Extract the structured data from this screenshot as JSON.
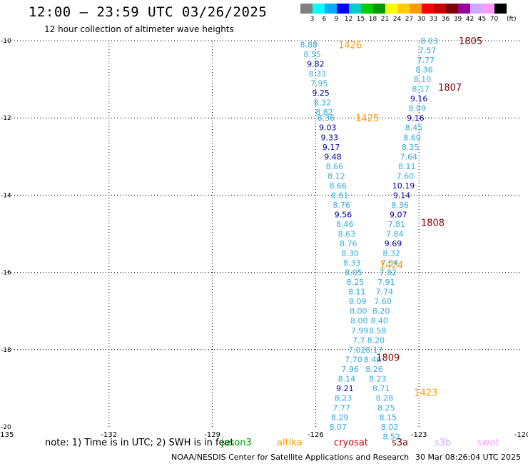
{
  "header": {
    "title": "12:00 – 23:59 UTC 03/26/2025",
    "subtitle": "12 hour collection of altimeter wave heights"
  },
  "legend": {
    "colors": [
      "#808080",
      "#00ffff",
      "#00aaff",
      "#0000ff",
      "#00cccc",
      "#00cc00",
      "#009900",
      "#ffff00",
      "#ffcc00",
      "#ff9900",
      "#ff0000",
      "#cc0000",
      "#800000",
      "#990099",
      "#ccaaff",
      "#ff99ff",
      "#000000"
    ],
    "labels": [
      "3",
      "6",
      "9",
      "12",
      "15",
      "18",
      "21",
      "24",
      "27",
      "30",
      "33",
      "36",
      "39",
      "42",
      "45",
      "70"
    ],
    "unit": "(ft)"
  },
  "map": {
    "x_ticks": [
      -135,
      -132,
      -129,
      -126,
      -123,
      -120
    ],
    "x_labels": [
      "-135",
      "-132",
      "-129",
      "-126",
      "-123",
      "-120"
    ],
    "y_ticks": [
      -10,
      -12,
      -14,
      -16,
      -18,
      -20
    ],
    "y_labels": [
      "-10",
      "-12",
      "-14",
      "-16",
      "-18",
      "-20"
    ],
    "lon_range": [
      -135,
      -120
    ],
    "lat_range": [
      -20,
      -10
    ]
  },
  "tracks": [
    {
      "color": "#33aadd",
      "points": [
        {
          "lat": -10.1,
          "lon": -126.2,
          "v": "8.88"
        },
        {
          "lat": -10.35,
          "lon": -126.1,
          "v": "8.55"
        },
        {
          "lat": -10.6,
          "lon": -126.0,
          "v": "9.82",
          "c": "#0000aa"
        },
        {
          "lat": -10.85,
          "lon": -125.95,
          "v": "8.33"
        },
        {
          "lat": -11.1,
          "lon": -125.9,
          "v": "7.95"
        },
        {
          "lat": -11.35,
          "lon": -125.85,
          "v": "9.25",
          "c": "#0000aa"
        },
        {
          "lat": -11.6,
          "lon": -125.8,
          "v": "8.32"
        },
        {
          "lat": -11.85,
          "lon": -125.75,
          "v": "8.82"
        },
        {
          "lat": -12.0,
          "lon": -125.7,
          "v": "8.36"
        },
        {
          "lat": -12.25,
          "lon": -125.65,
          "v": "9.03",
          "c": "#0000aa"
        },
        {
          "lat": -12.5,
          "lon": -125.6,
          "v": "9.33",
          "c": "#0000aa"
        },
        {
          "lat": -12.75,
          "lon": -125.55,
          "v": "9.17",
          "c": "#0000aa"
        },
        {
          "lat": -13.0,
          "lon": -125.5,
          "v": "9.48",
          "c": "#0000aa"
        },
        {
          "lat": -13.25,
          "lon": -125.45,
          "v": "8.66"
        },
        {
          "lat": -13.5,
          "lon": -125.4,
          "v": "8.12"
        },
        {
          "lat": -13.75,
          "lon": -125.35,
          "v": "8.66"
        },
        {
          "lat": -14.0,
          "lon": -125.3,
          "v": "8.61"
        },
        {
          "lat": -14.25,
          "lon": -125.25,
          "v": "8.76"
        },
        {
          "lat": -14.5,
          "lon": -125.2,
          "v": "9.56",
          "c": "#0000aa"
        },
        {
          "lat": -14.75,
          "lon": -125.15,
          "v": "8.46"
        },
        {
          "lat": -15.0,
          "lon": -125.1,
          "v": "8.63"
        },
        {
          "lat": -15.25,
          "lon": -125.05,
          "v": "8.76"
        },
        {
          "lat": -15.5,
          "lon": -125.0,
          "v": "8.30"
        },
        {
          "lat": -15.75,
          "lon": -124.95,
          "v": "8.33"
        },
        {
          "lat": -16.0,
          "lon": -124.9,
          "v": "8.05"
        },
        {
          "lat": -16.25,
          "lon": -124.85,
          "v": "8.25"
        },
        {
          "lat": -16.5,
          "lon": -124.8,
          "v": "8.11"
        },
        {
          "lat": -16.75,
          "lon": -124.78,
          "v": "8.09"
        },
        {
          "lat": -17.0,
          "lon": -124.76,
          "v": "8.00"
        },
        {
          "lat": -17.25,
          "lon": -124.74,
          "v": "8.00"
        },
        {
          "lat": -17.5,
          "lon": -124.72,
          "v": "7.99"
        },
        {
          "lat": -17.75,
          "lon": -124.75,
          "v": "7.7"
        },
        {
          "lat": -18.0,
          "lon": -124.8,
          "v": "7.02"
        },
        {
          "lat": -18.25,
          "lon": -124.9,
          "v": "7.70"
        },
        {
          "lat": -18.5,
          "lon": -125.0,
          "v": "7.96"
        },
        {
          "lat": -18.75,
          "lon": -125.1,
          "v": "8.14"
        },
        {
          "lat": -19.0,
          "lon": -125.15,
          "v": "9.21",
          "c": "#0000aa"
        },
        {
          "lat": -19.25,
          "lon": -125.2,
          "v": "8.23"
        },
        {
          "lat": -19.5,
          "lon": -125.25,
          "v": "7.77"
        },
        {
          "lat": -19.75,
          "lon": -125.3,
          "v": "8.29"
        },
        {
          "lat": -20.0,
          "lon": -125.35,
          "v": "8.07"
        }
      ]
    },
    {
      "color": "#33aadd",
      "points": [
        {
          "lat": -10.0,
          "lon": -122.7,
          "v": "8.03"
        },
        {
          "lat": -10.25,
          "lon": -122.75,
          "v": "7.57"
        },
        {
          "lat": -10.5,
          "lon": -122.8,
          "v": "7.77"
        },
        {
          "lat": -10.75,
          "lon": -122.85,
          "v": "8.36"
        },
        {
          "lat": -11.0,
          "lon": -122.9,
          "v": "8.10"
        },
        {
          "lat": -11.25,
          "lon": -122.95,
          "v": "8.17"
        },
        {
          "lat": -11.5,
          "lon": -123.0,
          "v": "9.16",
          "c": "#0000aa"
        },
        {
          "lat": -11.75,
          "lon": -123.05,
          "v": "8.09"
        },
        {
          "lat": -12.0,
          "lon": -123.1,
          "v": "9.16",
          "c": "#0000aa"
        },
        {
          "lat": -12.25,
          "lon": -123.15,
          "v": "8.45"
        },
        {
          "lat": -12.5,
          "lon": -123.2,
          "v": "8.60"
        },
        {
          "lat": -12.75,
          "lon": -123.25,
          "v": "8.35"
        },
        {
          "lat": -13.0,
          "lon": -123.3,
          "v": "7.64"
        },
        {
          "lat": -13.25,
          "lon": -123.35,
          "v": "8.11"
        },
        {
          "lat": -13.5,
          "lon": -123.4,
          "v": "7.60"
        },
        {
          "lat": -13.75,
          "lon": -123.45,
          "v": "10.19",
          "c": "#0000aa"
        },
        {
          "lat": -14.0,
          "lon": -123.5,
          "v": "9.14",
          "c": "#0000aa"
        },
        {
          "lat": -14.25,
          "lon": -123.55,
          "v": "8.36"
        },
        {
          "lat": -14.5,
          "lon": -123.6,
          "v": "9.07",
          "c": "#0000aa"
        },
        {
          "lat": -14.75,
          "lon": -123.65,
          "v": "7.81"
        },
        {
          "lat": -15.0,
          "lon": -123.7,
          "v": "7.84"
        },
        {
          "lat": -15.25,
          "lon": -123.75,
          "v": "9.69",
          "c": "#0000aa"
        },
        {
          "lat": -15.5,
          "lon": -123.8,
          "v": "8.32"
        },
        {
          "lat": -15.75,
          "lon": -123.85,
          "v": "7.54"
        },
        {
          "lat": -16.0,
          "lon": -123.9,
          "v": "7.82"
        },
        {
          "lat": -16.25,
          "lon": -123.95,
          "v": "7.91"
        },
        {
          "lat": -16.5,
          "lon": -124.0,
          "v": "7.74"
        },
        {
          "lat": -16.75,
          "lon": -124.05,
          "v": "7.60"
        },
        {
          "lat": -17.0,
          "lon": -124.1,
          "v": "8.20"
        },
        {
          "lat": -17.25,
          "lon": -124.15,
          "v": "8.40"
        },
        {
          "lat": -17.5,
          "lon": -124.2,
          "v": "8.58"
        },
        {
          "lat": -17.75,
          "lon": -124.25,
          "v": "8.20"
        },
        {
          "lat": -18.0,
          "lon": -124.3,
          "v": "8.17"
        },
        {
          "lat": -18.25,
          "lon": -124.35,
          "v": "8.46"
        },
        {
          "lat": -18.5,
          "lon": -124.3,
          "v": "8.26"
        },
        {
          "lat": -18.75,
          "lon": -124.2,
          "v": "8.23"
        },
        {
          "lat": -19.0,
          "lon": -124.1,
          "v": "8.71"
        },
        {
          "lat": -19.25,
          "lon": -124.0,
          "v": "8.28"
        },
        {
          "lat": -19.5,
          "lon": -123.95,
          "v": "8.25"
        },
        {
          "lat": -19.75,
          "lon": -123.9,
          "v": "8.15"
        },
        {
          "lat": -20.0,
          "lon": -123.85,
          "v": "8.02"
        },
        {
          "lat": -20.25,
          "lon": -123.8,
          "v": "8.52"
        }
      ]
    }
  ],
  "pass_labels": [
    {
      "text": "1426",
      "lat": -10.1,
      "lon": -125.0,
      "color": "#ff9900"
    },
    {
      "text": "1805",
      "lat": -10.0,
      "lon": -121.5,
      "color": "#800000"
    },
    {
      "text": "1807",
      "lat": -11.2,
      "lon": -122.1,
      "color": "#800000"
    },
    {
      "text": "1425",
      "lat": -12.0,
      "lon": -124.5,
      "color": "#ff9900"
    },
    {
      "text": "1808",
      "lat": -14.7,
      "lon": -122.6,
      "color": "#800000"
    },
    {
      "text": "1424",
      "lat": -15.8,
      "lon": -123.8,
      "color": "#ff9900"
    },
    {
      "text": "1809",
      "lat": -18.2,
      "lon": -123.9,
      "color": "#800000"
    },
    {
      "text": "1423",
      "lat": -19.1,
      "lon": -122.8,
      "color": "#ff9900"
    }
  ],
  "footer": {
    "note": "note: 1) Time is in UTC; 2) SWH is in feet",
    "satellites": [
      {
        "name": "jason3",
        "color": "#009900"
      },
      {
        "name": "altika",
        "color": "#ff9900"
      },
      {
        "name": "cryosat",
        "color": "#cc0000"
      },
      {
        "name": "s3a",
        "color": "#800000"
      },
      {
        "name": "s3b",
        "color": "#ccaaff"
      },
      {
        "name": "swot",
        "color": "#ff99ff"
      }
    ],
    "credit": "NOAA/NESDIS Center for Satellite Applications and Research",
    "timestamp": "30 Mar 08:26:04 UTC 2025"
  }
}
